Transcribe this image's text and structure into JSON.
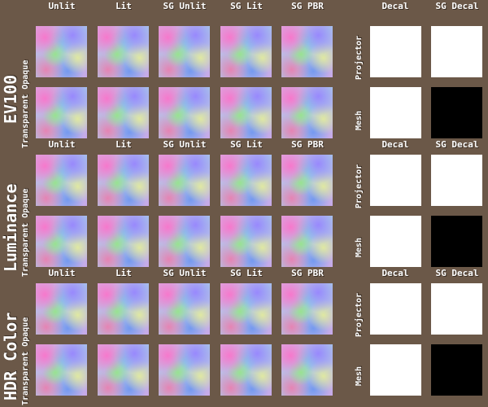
{
  "left_titles": [
    "EV100",
    "Luminance",
    "HDR Color"
  ],
  "blocks": [
    {
      "columns": [
        "Unlit",
        "Lit",
        "SG Unlit",
        "SG Lit",
        "SG PBR"
      ],
      "decal_columns": [
        "Decal",
        "SG Decal"
      ],
      "left_row_label": "Transparent Opaque",
      "decal_rows": [
        "Projector",
        "Mesh"
      ],
      "decal_colors": [
        "#ffffff",
        "#ffffff",
        "#ffffff",
        "#000000"
      ]
    },
    {
      "columns": [
        "Unlit",
        "Lit",
        "SG Unlit",
        "SG Lit",
        "SG PBR"
      ],
      "decal_columns": [
        "Decal",
        "SG Decal"
      ],
      "left_row_label": "Transparent Opaque",
      "decal_rows": [
        "Projector",
        "Mesh"
      ],
      "decal_colors": [
        "#ffffff",
        "#ffffff",
        "#ffffff",
        "#000000"
      ]
    },
    {
      "columns": [
        "Unlit",
        "Lit",
        "SG Unlit",
        "SG Lit",
        "SG PBR"
      ],
      "decal_columns": [
        "Decal",
        "SG Decal"
      ],
      "left_row_label": "Transparent Opaque",
      "decal_rows": [
        "Projector",
        "Mesh"
      ],
      "decal_colors": [
        "#ffffff",
        "#ffffff",
        "#ffffff",
        "#000000"
      ]
    }
  ],
  "background_color": "#6b5848"
}
